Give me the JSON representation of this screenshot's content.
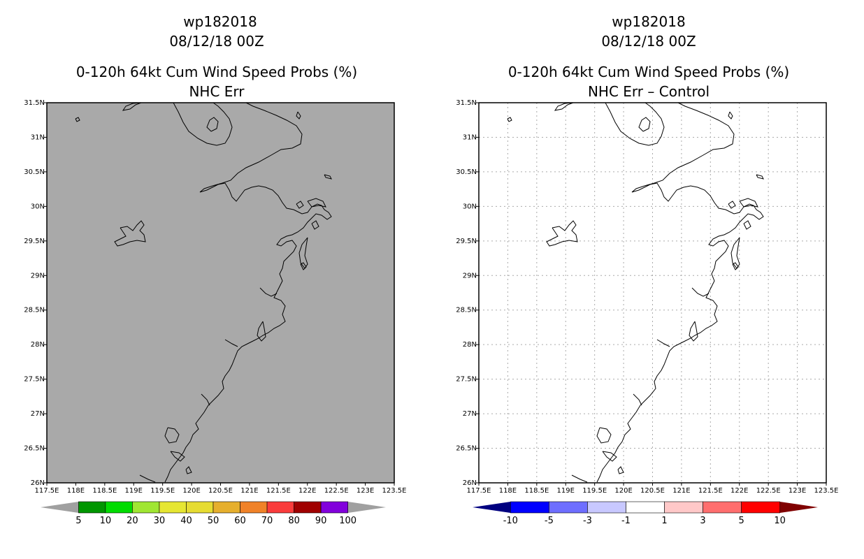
{
  "panels": [
    {
      "id": "left",
      "title_lines": [
        "wp182018",
        "08/12/18 00Z",
        "0-120h 64kt Cum Wind Speed Probs (%)",
        "NHC Err"
      ],
      "background": "#a9a9a9",
      "grid": false,
      "colorbar": {
        "colors": [
          "#009600",
          "#00dc00",
          "#a0e632",
          "#e6e632",
          "#e6dc32",
          "#e6af2d",
          "#f08228",
          "#fa3c3c",
          "#a00000",
          "#8200dc"
        ],
        "labels": [
          "5",
          "10",
          "20",
          "30",
          "40",
          "50",
          "60",
          "70",
          "80",
          "90",
          "100"
        ],
        "low_arrow": "#a0a0a0",
        "high_arrow": "#a0a0a0"
      }
    },
    {
      "id": "right",
      "title_lines": [
        "wp182018",
        "08/12/18 00Z",
        "0-120h 64kt Cum Wind Speed Probs (%)",
        "NHC Err – Control"
      ],
      "background": "#ffffff",
      "grid": true,
      "colorbar": {
        "colors": [
          "#0000ff",
          "#6e6eff",
          "#c8c8ff",
          "#ffffff",
          "#ffc8c8",
          "#ff6e6e",
          "#ff0000"
        ],
        "labels": [
          "-10",
          "-5",
          "-3",
          "-1",
          "1",
          "3",
          "5",
          "10"
        ],
        "low_arrow": "#000080",
        "high_arrow": "#800000"
      }
    }
  ],
  "map": {
    "lon_ticks": [
      "117.5E",
      "118E",
      "118.5E",
      "119E",
      "119.5E",
      "120E",
      "120.5E",
      "121E",
      "121.5E",
      "122E",
      "122.5E",
      "123E",
      "123.5E"
    ],
    "lat_ticks": [
      "31.5N",
      "31N",
      "30.5N",
      "30N",
      "29.5N",
      "29N",
      "28.5N",
      "28N",
      "27.5N",
      "27N",
      "26.5N",
      "26N"
    ],
    "lon_range": [
      117.5,
      123.5
    ],
    "lat_range": [
      26,
      31.5
    ]
  }
}
